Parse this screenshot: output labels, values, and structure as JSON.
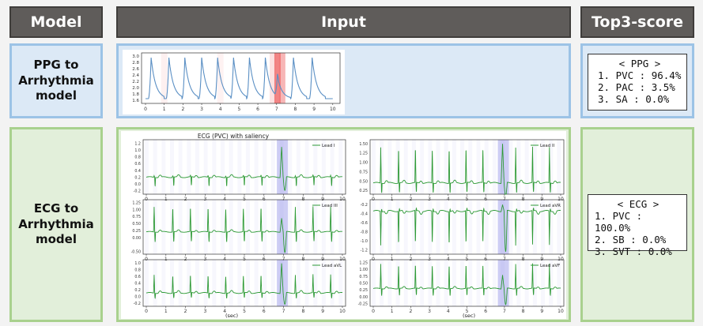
{
  "headers": {
    "model": "Model",
    "input": "Input",
    "score": "Top3-score"
  },
  "rows": [
    {
      "label_lines": [
        "PPG to",
        "Arrhythmia",
        "model"
      ],
      "score_title": "< PPG >",
      "scores": [
        "1. PVC : 96.4%",
        "2. PAC : 3.5%",
        "3. SA : 0.0%"
      ],
      "plot": {
        "x_ticks": [
          "0",
          "1",
          "2",
          "3",
          "4",
          "5",
          "6",
          "7",
          "8",
          "9",
          "10"
        ],
        "y_ticks": [
          "1.6",
          "1.8",
          "2.0",
          "2.2",
          "2.4",
          "2.6",
          "2.8",
          "3.0"
        ],
        "beat_times": [
          0.3,
          1.25,
          2.1,
          3.0,
          3.85,
          4.7,
          5.55,
          6.4,
          7.05,
          7.9,
          8.9
        ],
        "saliency": [
          {
            "t": 7.05,
            "strength": 1.0
          },
          {
            "t": 7.3,
            "strength": 0.6
          },
          {
            "t": 6.8,
            "strength": 0.25
          },
          {
            "t": 1.0,
            "strength": 0.12
          },
          {
            "t": 4.0,
            "strength": 0.1
          }
        ],
        "colors": {
          "line": "#5a8fc4",
          "saliency": "#f07070"
        }
      }
    },
    {
      "label_lines": [
        "ECG to",
        "Arrhythmia",
        "model"
      ],
      "score_title": "< ECG >",
      "scores": [
        "1. PVC : 100.0%",
        "2. SB : 0.0%",
        "3. SVT : 0.0%"
      ],
      "figure_title": "ECG (PVC) with saliency",
      "xlabel": "(sec)",
      "x_ticks": [
        "0",
        "1",
        "2",
        "3",
        "4",
        "5",
        "6",
        "7",
        "8",
        "9",
        "10"
      ],
      "beat_times": [
        0.4,
        1.35,
        2.25,
        3.15,
        4.05,
        4.95,
        5.85,
        6.9,
        7.6,
        8.5,
        9.4
      ],
      "pvc_beat": 6.9,
      "colors": {
        "line": "#2e9a36",
        "saliency": "#7070e0"
      },
      "leads": [
        {
          "name": "Lead I",
          "y_ticks": [
            "1.2",
            "1.0",
            "0.8",
            "0.6",
            "0.4",
            "0.2",
            "0.0",
            "-0.2"
          ],
          "ylim": [
            -0.3,
            1.3
          ],
          "base": 0.2,
          "r": 0.25,
          "s": -0.05,
          "pvc": 1.1,
          "pvc_s": -0.2,
          "neg": false
        },
        {
          "name": "Lead II",
          "y_ticks": [
            "1.50",
            "1.25",
            "1.00",
            "0.75",
            "0.50",
            "0.25"
          ],
          "ylim": [
            0.15,
            1.6
          ],
          "base": 0.45,
          "r": 1.4,
          "s": 0.2,
          "pvc": 1.5,
          "pvc_s": 0.1,
          "neg": false
        },
        {
          "name": "Lead III",
          "y_ticks": [
            "1.25",
            "1.00",
            "0.75",
            "0.50",
            "0.25",
            "0.00",
            "-0.50"
          ],
          "ylim": [
            -0.6,
            1.35
          ],
          "base": 0.2,
          "r": 1.1,
          "s": -0.15,
          "pvc": 0.7,
          "pvc_s": -0.55,
          "neg": false
        },
        {
          "name": "Lead aVR",
          "y_ticks": [
            "-0.2",
            "-0.4",
            "-0.6",
            "-0.8",
            "-1.0",
            "-1.2"
          ],
          "ylim": [
            -1.3,
            -0.1
          ],
          "base": -0.35,
          "r": -1.1,
          "s": -0.3,
          "pvc": -0.2,
          "pvc_s": -1.25,
          "neg": true
        },
        {
          "name": "Lead aVL",
          "y_ticks": [
            "1.0",
            "0.8",
            "0.6",
            "0.4",
            "0.2",
            "0.0",
            "-0.2"
          ],
          "ylim": [
            -0.3,
            1.1
          ],
          "base": 0.1,
          "r": 0.65,
          "s": -0.05,
          "pvc": 1.0,
          "pvc_s": -0.25,
          "neg": false
        },
        {
          "name": "Lead aVF",
          "y_ticks": [
            "1.25",
            "1.00",
            "0.75",
            "0.50",
            "0.25",
            "0.00",
            "-0.25"
          ],
          "ylim": [
            -0.35,
            1.35
          ],
          "base": 0.3,
          "r": 1.2,
          "s": 0.05,
          "pvc": 0.8,
          "pvc_s": -0.3,
          "neg": false
        }
      ]
    }
  ]
}
